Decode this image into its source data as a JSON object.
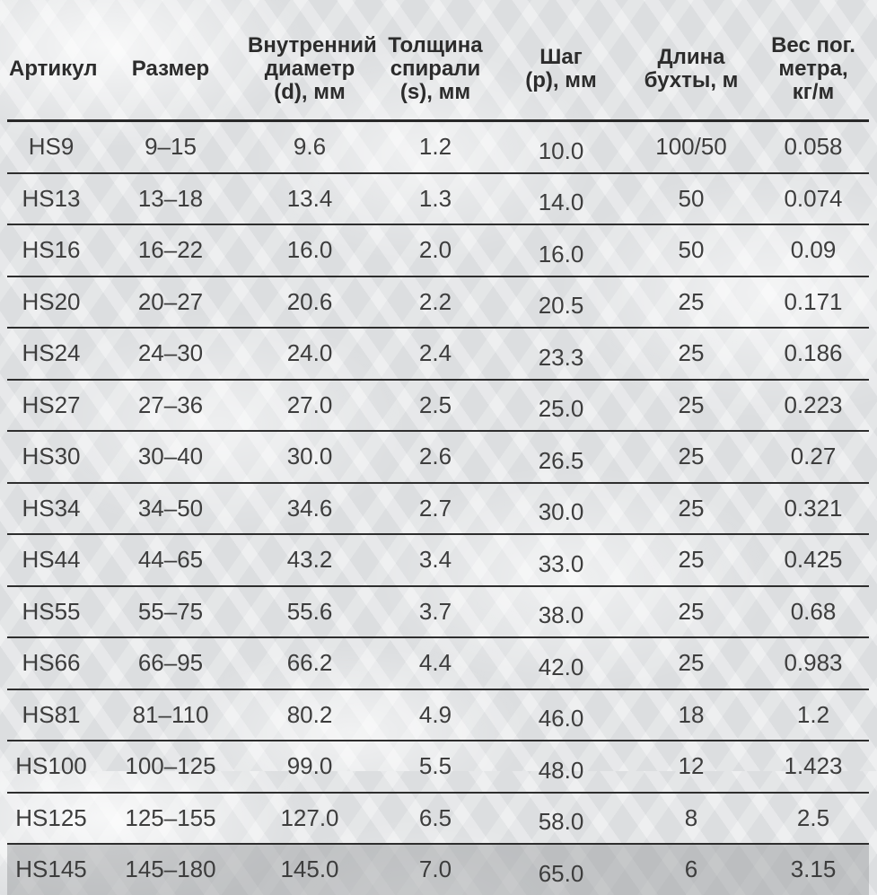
{
  "colors": {
    "background_base": "#e4e6e8",
    "rule_line": "#2e2e2e",
    "header_text": "#2c2c2c",
    "body_text": "#3d3d3d",
    "highlight_row": "#c6c7c9"
  },
  "table": {
    "columns": [
      {
        "key": "article",
        "label": "Артикул"
      },
      {
        "key": "size",
        "label": "Размер"
      },
      {
        "key": "inner_diameter",
        "label": "Внутренний\nдиаметр\n(d), мм"
      },
      {
        "key": "spiral_thickness",
        "label": "Толщина\nспирали\n(s), мм"
      },
      {
        "key": "pitch",
        "label": "Шаг\n(p), мм"
      },
      {
        "key": "coil_length",
        "label": "Длина\nбухты, м"
      },
      {
        "key": "weight",
        "label": "Вес пог.\nметра,\nкг/м"
      }
    ],
    "rows": [
      {
        "article": "HS9",
        "size": "9–15",
        "inner_diameter": "9.6",
        "spiral_thickness": "1.2",
        "pitch": "10.0",
        "coil_length": "100/50",
        "weight": "0.058",
        "highlight": false
      },
      {
        "article": "HS13",
        "size": "13–18",
        "inner_diameter": "13.4",
        "spiral_thickness": "1.3",
        "pitch": "14.0",
        "coil_length": "50",
        "weight": "0.074",
        "highlight": false
      },
      {
        "article": "HS16",
        "size": "16–22",
        "inner_diameter": "16.0",
        "spiral_thickness": "2.0",
        "pitch": "16.0",
        "coil_length": "50",
        "weight": "0.09",
        "highlight": false
      },
      {
        "article": "HS20",
        "size": "20–27",
        "inner_diameter": "20.6",
        "spiral_thickness": "2.2",
        "pitch": "20.5",
        "coil_length": "25",
        "weight": "0.171",
        "highlight": false
      },
      {
        "article": "HS24",
        "size": "24–30",
        "inner_diameter": "24.0",
        "spiral_thickness": "2.4",
        "pitch": "23.3",
        "coil_length": "25",
        "weight": "0.186",
        "highlight": false
      },
      {
        "article": "HS27",
        "size": "27–36",
        "inner_diameter": "27.0",
        "spiral_thickness": "2.5",
        "pitch": "25.0",
        "coil_length": "25",
        "weight": "0.223",
        "highlight": false
      },
      {
        "article": "HS30",
        "size": "30–40",
        "inner_diameter": "30.0",
        "spiral_thickness": "2.6",
        "pitch": "26.5",
        "coil_length": "25",
        "weight": "0.27",
        "highlight": false
      },
      {
        "article": "HS34",
        "size": "34–50",
        "inner_diameter": "34.6",
        "spiral_thickness": "2.7",
        "pitch": "30.0",
        "coil_length": "25",
        "weight": "0.321",
        "highlight": false
      },
      {
        "article": "HS44",
        "size": "44–65",
        "inner_diameter": "43.2",
        "spiral_thickness": "3.4",
        "pitch": "33.0",
        "coil_length": "25",
        "weight": "0.425",
        "highlight": false
      },
      {
        "article": "HS55",
        "size": "55–75",
        "inner_diameter": "55.6",
        "spiral_thickness": "3.7",
        "pitch": "38.0",
        "coil_length": "25",
        "weight": "0.68",
        "highlight": false
      },
      {
        "article": "HS66",
        "size": "66–95",
        "inner_diameter": "66.2",
        "spiral_thickness": "4.4",
        "pitch": "42.0",
        "coil_length": "25",
        "weight": "0.983",
        "highlight": false
      },
      {
        "article": "HS81",
        "size": "81–110",
        "inner_diameter": "80.2",
        "spiral_thickness": "4.9",
        "pitch": "46.0",
        "coil_length": "18",
        "weight": "1.2",
        "highlight": false
      },
      {
        "article": "HS100",
        "size": "100–125",
        "inner_diameter": "99.0",
        "spiral_thickness": "5.5",
        "pitch": "48.0",
        "coil_length": "12",
        "weight": "1.423",
        "highlight": false
      },
      {
        "article": "HS125",
        "size": "125–155",
        "inner_diameter": "127.0",
        "spiral_thickness": "6.5",
        "pitch": "58.0",
        "coil_length": "8",
        "weight": "2.5",
        "highlight": false
      },
      {
        "article": "HS145",
        "size": "145–180",
        "inner_diameter": "145.0",
        "spiral_thickness": "7.0",
        "pitch": "65.0",
        "coil_length": "6",
        "weight": "3.15",
        "highlight": true
      }
    ]
  }
}
